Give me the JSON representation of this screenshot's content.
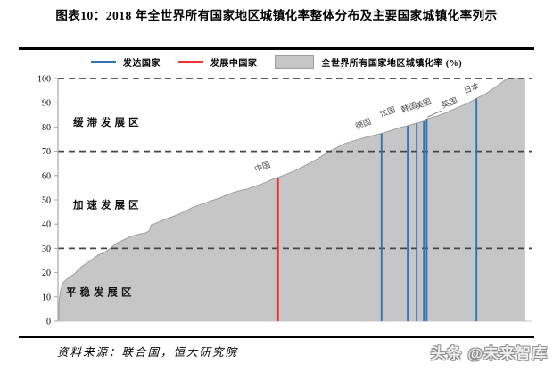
{
  "title": {
    "text": "图表10：2018 年全世界所有国家地区城镇化率整体分布及主要国家城镇化率列示"
  },
  "legend": {
    "items": [
      {
        "label": "发达国家",
        "color": "#2e75b6",
        "swatch": "line"
      },
      {
        "label": "发展中国家",
        "color": "#f0342c",
        "swatch": "line"
      },
      {
        "label": "全世界所有国家地区城镇化率 (%)",
        "color": "#c6c6c6",
        "swatch": "box"
      }
    ]
  },
  "chart_data": {
    "type": "area",
    "title": "2018年全世界所有国家地区城镇化率整体分布及主要国家城镇化率列示",
    "xlabel": "",
    "ylabel": "",
    "ylim": [
      0,
      100
    ],
    "yticks": [
      0,
      10,
      20,
      30,
      40,
      50,
      60,
      70,
      80,
      90,
      100
    ],
    "dashed_gridlines": [
      30,
      70,
      100
    ],
    "grid": "dashed horizontal at 30 / 70 / 100",
    "legend_position": "top",
    "colors": {
      "developed": "#2e75b6",
      "developing": "#f0342c",
      "area": "#c6c6c6",
      "area_border": "#9e9e9e",
      "gridline": "#454545",
      "axis": "#a8a8a8"
    },
    "zones": [
      {
        "label": "缓滞发展区",
        "range": [
          70,
          100
        ],
        "label_value": 82
      },
      {
        "label": "加速发展区",
        "range": [
          30,
          70
        ],
        "label_value": 48
      },
      {
        "label": "平稳发展区",
        "range": [
          0,
          30
        ],
        "label_value": 12
      }
    ],
    "countries": [
      {
        "name": "中国",
        "group": "developing",
        "x_percent": 46.4,
        "value": 59.2
      },
      {
        "name": "德国",
        "group": "developed",
        "x_percent": 68.2,
        "value": 77.3
      },
      {
        "name": "法国",
        "group": "developed",
        "x_percent": 73.7,
        "value": 80.4
      },
      {
        "name": "韩国",
        "group": "developed",
        "x_percent": 75.6,
        "value": 81.5
      },
      {
        "name": "美国",
        "group": "developed",
        "x_percent": 77.1,
        "value": 82.3
      },
      {
        "name": "英国",
        "group": "developed",
        "x_percent": 77.7,
        "value": 83.4
      },
      {
        "name": "日本",
        "group": "developed",
        "x_percent": 88.2,
        "value": 91.6
      }
    ],
    "distribution": [
      [
        0.2,
        8
      ],
      [
        0.5,
        12
      ],
      [
        0.9,
        15.5
      ],
      [
        1.7,
        17
      ],
      [
        2.6,
        18.5
      ],
      [
        3.4,
        19.3
      ],
      [
        4.1,
        20.8
      ],
      [
        4.9,
        22.3
      ],
      [
        5.8,
        23.6
      ],
      [
        6.8,
        24.8
      ],
      [
        7.7,
        26.2
      ],
      [
        8.6,
        27.4
      ],
      [
        9.6,
        28.2
      ],
      [
        10.5,
        29.3
      ],
      [
        11.5,
        30.7
      ],
      [
        12.4,
        32.2
      ],
      [
        13.7,
        33.4
      ],
      [
        15.2,
        34.8
      ],
      [
        17.1,
        35.9
      ],
      [
        18.5,
        36.4
      ],
      [
        19.3,
        37.4
      ],
      [
        19.6,
        39.6
      ],
      [
        21.2,
        40.8
      ],
      [
        22.7,
        42.1
      ],
      [
        24.1,
        43.0
      ],
      [
        25.5,
        44.1
      ],
      [
        27.0,
        45.4
      ],
      [
        28.3,
        46.9
      ],
      [
        29.7,
        47.8
      ],
      [
        31.2,
        48.8
      ],
      [
        32.6,
        49.8
      ],
      [
        34.0,
        50.7
      ],
      [
        35.4,
        51.8
      ],
      [
        36.9,
        53.0
      ],
      [
        38.3,
        53.8
      ],
      [
        39.7,
        54.3
      ],
      [
        41.0,
        55.3
      ],
      [
        42.5,
        56.2
      ],
      [
        43.9,
        57.3
      ],
      [
        45.2,
        58.5
      ],
      [
        46.4,
        59.2
      ],
      [
        48.1,
        60.5
      ],
      [
        49.9,
        62.0
      ],
      [
        51.8,
        63.8
      ],
      [
        53.7,
        65.8
      ],
      [
        55.6,
        68.0
      ],
      [
        57.1,
        69.9
      ],
      [
        58.4,
        71.2
      ],
      [
        60.3,
        73.1
      ],
      [
        62.1,
        74.2
      ],
      [
        64.0,
        75.3
      ],
      [
        65.9,
        76.3
      ],
      [
        68.2,
        77.4
      ],
      [
        70.5,
        78.8
      ],
      [
        72.2,
        79.9
      ],
      [
        73.7,
        80.5
      ],
      [
        75.6,
        81.6
      ],
      [
        77.1,
        82.4
      ],
      [
        77.7,
        83.4
      ],
      [
        80.0,
        84.6
      ],
      [
        81.9,
        86.0
      ],
      [
        83.7,
        87.6
      ],
      [
        85.6,
        89.2
      ],
      [
        87.1,
        90.6
      ],
      [
        88.2,
        91.8
      ],
      [
        90.2,
        93.8
      ],
      [
        92.1,
        96.3
      ],
      [
        93.7,
        98.6
      ],
      [
        94.6,
        100
      ],
      [
        98.3,
        100
      ]
    ]
  },
  "source": {
    "text": "资料来源：联合国，恒大研究院"
  },
  "watermark": {
    "text": "头条 @未来智库"
  }
}
